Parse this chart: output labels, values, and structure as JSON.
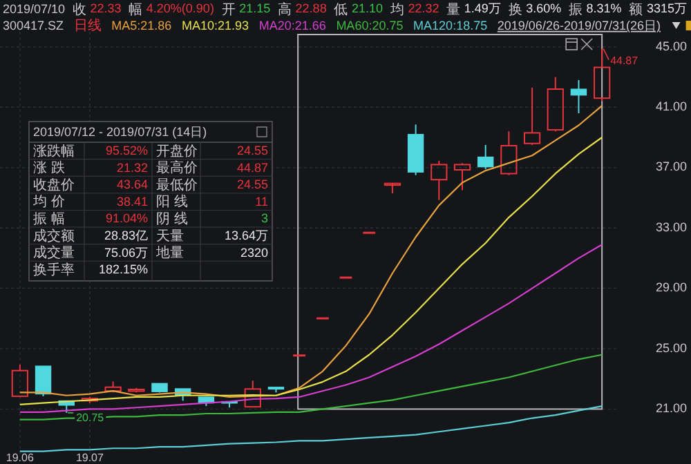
{
  "chart_data": {
    "type": "candlestick",
    "title": "2019/07/10",
    "categories": [
      "19.06",
      null,
      null,
      "19.07",
      null,
      null,
      null,
      null,
      null,
      null,
      null,
      null,
      null,
      null,
      null,
      null,
      null,
      null,
      null,
      null,
      null,
      null,
      null,
      null,
      null,
      null
    ],
    "ohlc": [
      [
        21.85,
        23.95,
        21.8,
        23.55
      ],
      [
        23.85,
        23.85,
        21.85,
        22.0
      ],
      [
        21.55,
        21.55,
        20.75,
        21.25
      ],
      [
        21.55,
        21.8,
        21.4,
        21.7
      ],
      [
        22.2,
        22.83,
        22.1,
        22.45
      ],
      [
        22.2,
        22.4,
        22.1,
        22.3
      ],
      [
        22.7,
        22.7,
        22.1,
        22.15
      ],
      [
        22.35,
        22.35,
        21.55,
        21.9
      ],
      [
        21.8,
        21.8,
        21.2,
        21.4
      ],
      [
        21.5,
        21.5,
        21.1,
        21.45
      ],
      [
        21.15,
        22.88,
        21.1,
        22.33
      ],
      [
        22.45,
        22.45,
        22.1,
        22.32
      ],
      [
        24.55,
        24.55,
        24.55,
        24.55
      ],
      [
        27.01,
        27.01,
        27.01,
        27.01
      ],
      [
        29.71,
        29.71,
        29.71,
        29.71
      ],
      [
        32.68,
        32.68,
        32.68,
        32.68
      ],
      [
        35.95,
        35.95,
        35.3,
        35.95
      ],
      [
        39.2,
        39.85,
        36.5,
        36.7
      ],
      [
        36.2,
        37.45,
        34.85,
        37.2
      ],
      [
        36.85,
        37.3,
        35.5,
        37.2
      ],
      [
        37.7,
        38.5,
        36.9,
        37.05
      ],
      [
        36.6,
        39.4,
        36.5,
        38.45
      ],
      [
        38.6,
        42.3,
        38.5,
        39.3
      ],
      [
        39.5,
        43.0,
        39.4,
        42.2
      ],
      [
        42.2,
        42.8,
        40.6,
        41.8
      ],
      [
        41.6,
        44.87,
        41.4,
        43.64
      ]
    ],
    "series": [
      {
        "name": "MA5:21.86",
        "type": "line",
        "color": "#e8a33d",
        "values": [
          22.1,
          22.1,
          21.9,
          22.0,
          22.2,
          21.9,
          22.0,
          22.1,
          22.0,
          21.8,
          21.86,
          21.9,
          22.4,
          23.5,
          25.2,
          27.3,
          30.0,
          32.4,
          34.5,
          36.0,
          36.8,
          37.3,
          37.8,
          38.8,
          39.8,
          41.1
        ]
      },
      {
        "name": "MA10:21.93",
        "type": "line",
        "color": "#e6e04a",
        "values": [
          21.3,
          21.4,
          21.5,
          21.6,
          21.7,
          21.8,
          21.8,
          21.9,
          21.9,
          21.9,
          21.93,
          21.9,
          22.3,
          22.8,
          23.5,
          24.6,
          25.9,
          27.4,
          29.0,
          30.6,
          32.0,
          33.7,
          35.1,
          36.6,
          37.9,
          39.0
        ]
      },
      {
        "name": "MA20:21.66",
        "type": "line",
        "color": "#d43fd0",
        "values": [
          20.8,
          20.8,
          20.9,
          21.0,
          21.0,
          21.1,
          21.2,
          21.3,
          21.4,
          21.5,
          21.66,
          21.7,
          21.8,
          22.2,
          22.6,
          23.1,
          23.8,
          24.5,
          25.3,
          26.2,
          27.1,
          28.0,
          29.0,
          30.0,
          31.0,
          31.9
        ]
      },
      {
        "name": "MA60:20.75",
        "type": "line",
        "color": "#3fb83f",
        "values": [
          20.3,
          20.3,
          20.4,
          20.4,
          20.5,
          20.5,
          20.6,
          20.6,
          20.7,
          20.7,
          20.75,
          20.8,
          20.8,
          21.0,
          21.2,
          21.4,
          21.6,
          21.9,
          22.2,
          22.5,
          22.8,
          23.1,
          23.5,
          23.9,
          24.3,
          24.6
        ]
      },
      {
        "name": "MA120:18.75",
        "type": "line",
        "color": "#5ccfd6",
        "values": [
          18.2,
          18.2,
          18.3,
          18.3,
          18.4,
          18.4,
          18.5,
          18.5,
          18.6,
          18.7,
          18.75,
          18.8,
          18.9,
          18.9,
          19.0,
          19.1,
          19.2,
          19.3,
          19.5,
          19.7,
          19.9,
          20.1,
          20.4,
          20.6,
          20.9,
          21.2
        ]
      }
    ],
    "ylim": [
      18,
      46
    ],
    "yticks": [
      {
        "value": 21,
        "label": "21.00"
      },
      {
        "value": 25,
        "label": "25.00"
      },
      {
        "value": 29,
        "label": "29.00"
      },
      {
        "value": 33,
        "label": "33.00"
      },
      {
        "value": 37,
        "label": "37.00"
      },
      {
        "value": 41,
        "label": "41.00"
      },
      {
        "value": 45,
        "label": "45.00"
      }
    ],
    "grid": true,
    "legend": "top",
    "annotations": [
      "收 22.33",
      "幅 4.20%(0.90)",
      "开 21.15",
      "高 22.88",
      "低 21.10",
      "均 22.32",
      "量 1.49万",
      "换 3.60%",
      "振 8.31%",
      "额 3315万",
      "300417.SZ",
      "日线",
      "2019/06/26-2019/07/31(26日)",
      "2019/07/12 - 2019/07/31 (14日)",
      "涨跌幅",
      "95.52%",
      "开盘价",
      "24.55",
      "涨 跌",
      "21.32",
      "最高价",
      "44.87",
      "收盘价",
      "43.64",
      "最低价",
      "24.55",
      "均 价",
      "38.41",
      "阳 线",
      "11",
      "振 幅",
      "91.04%",
      "阴 线",
      "3",
      "成交额",
      "28.83亿",
      "天量",
      "13.64万",
      "成交量",
      "75.06万",
      "地量",
      "2320",
      "换手率",
      "182.15%",
      "44.87",
      "20.75"
    ]
  }
}
